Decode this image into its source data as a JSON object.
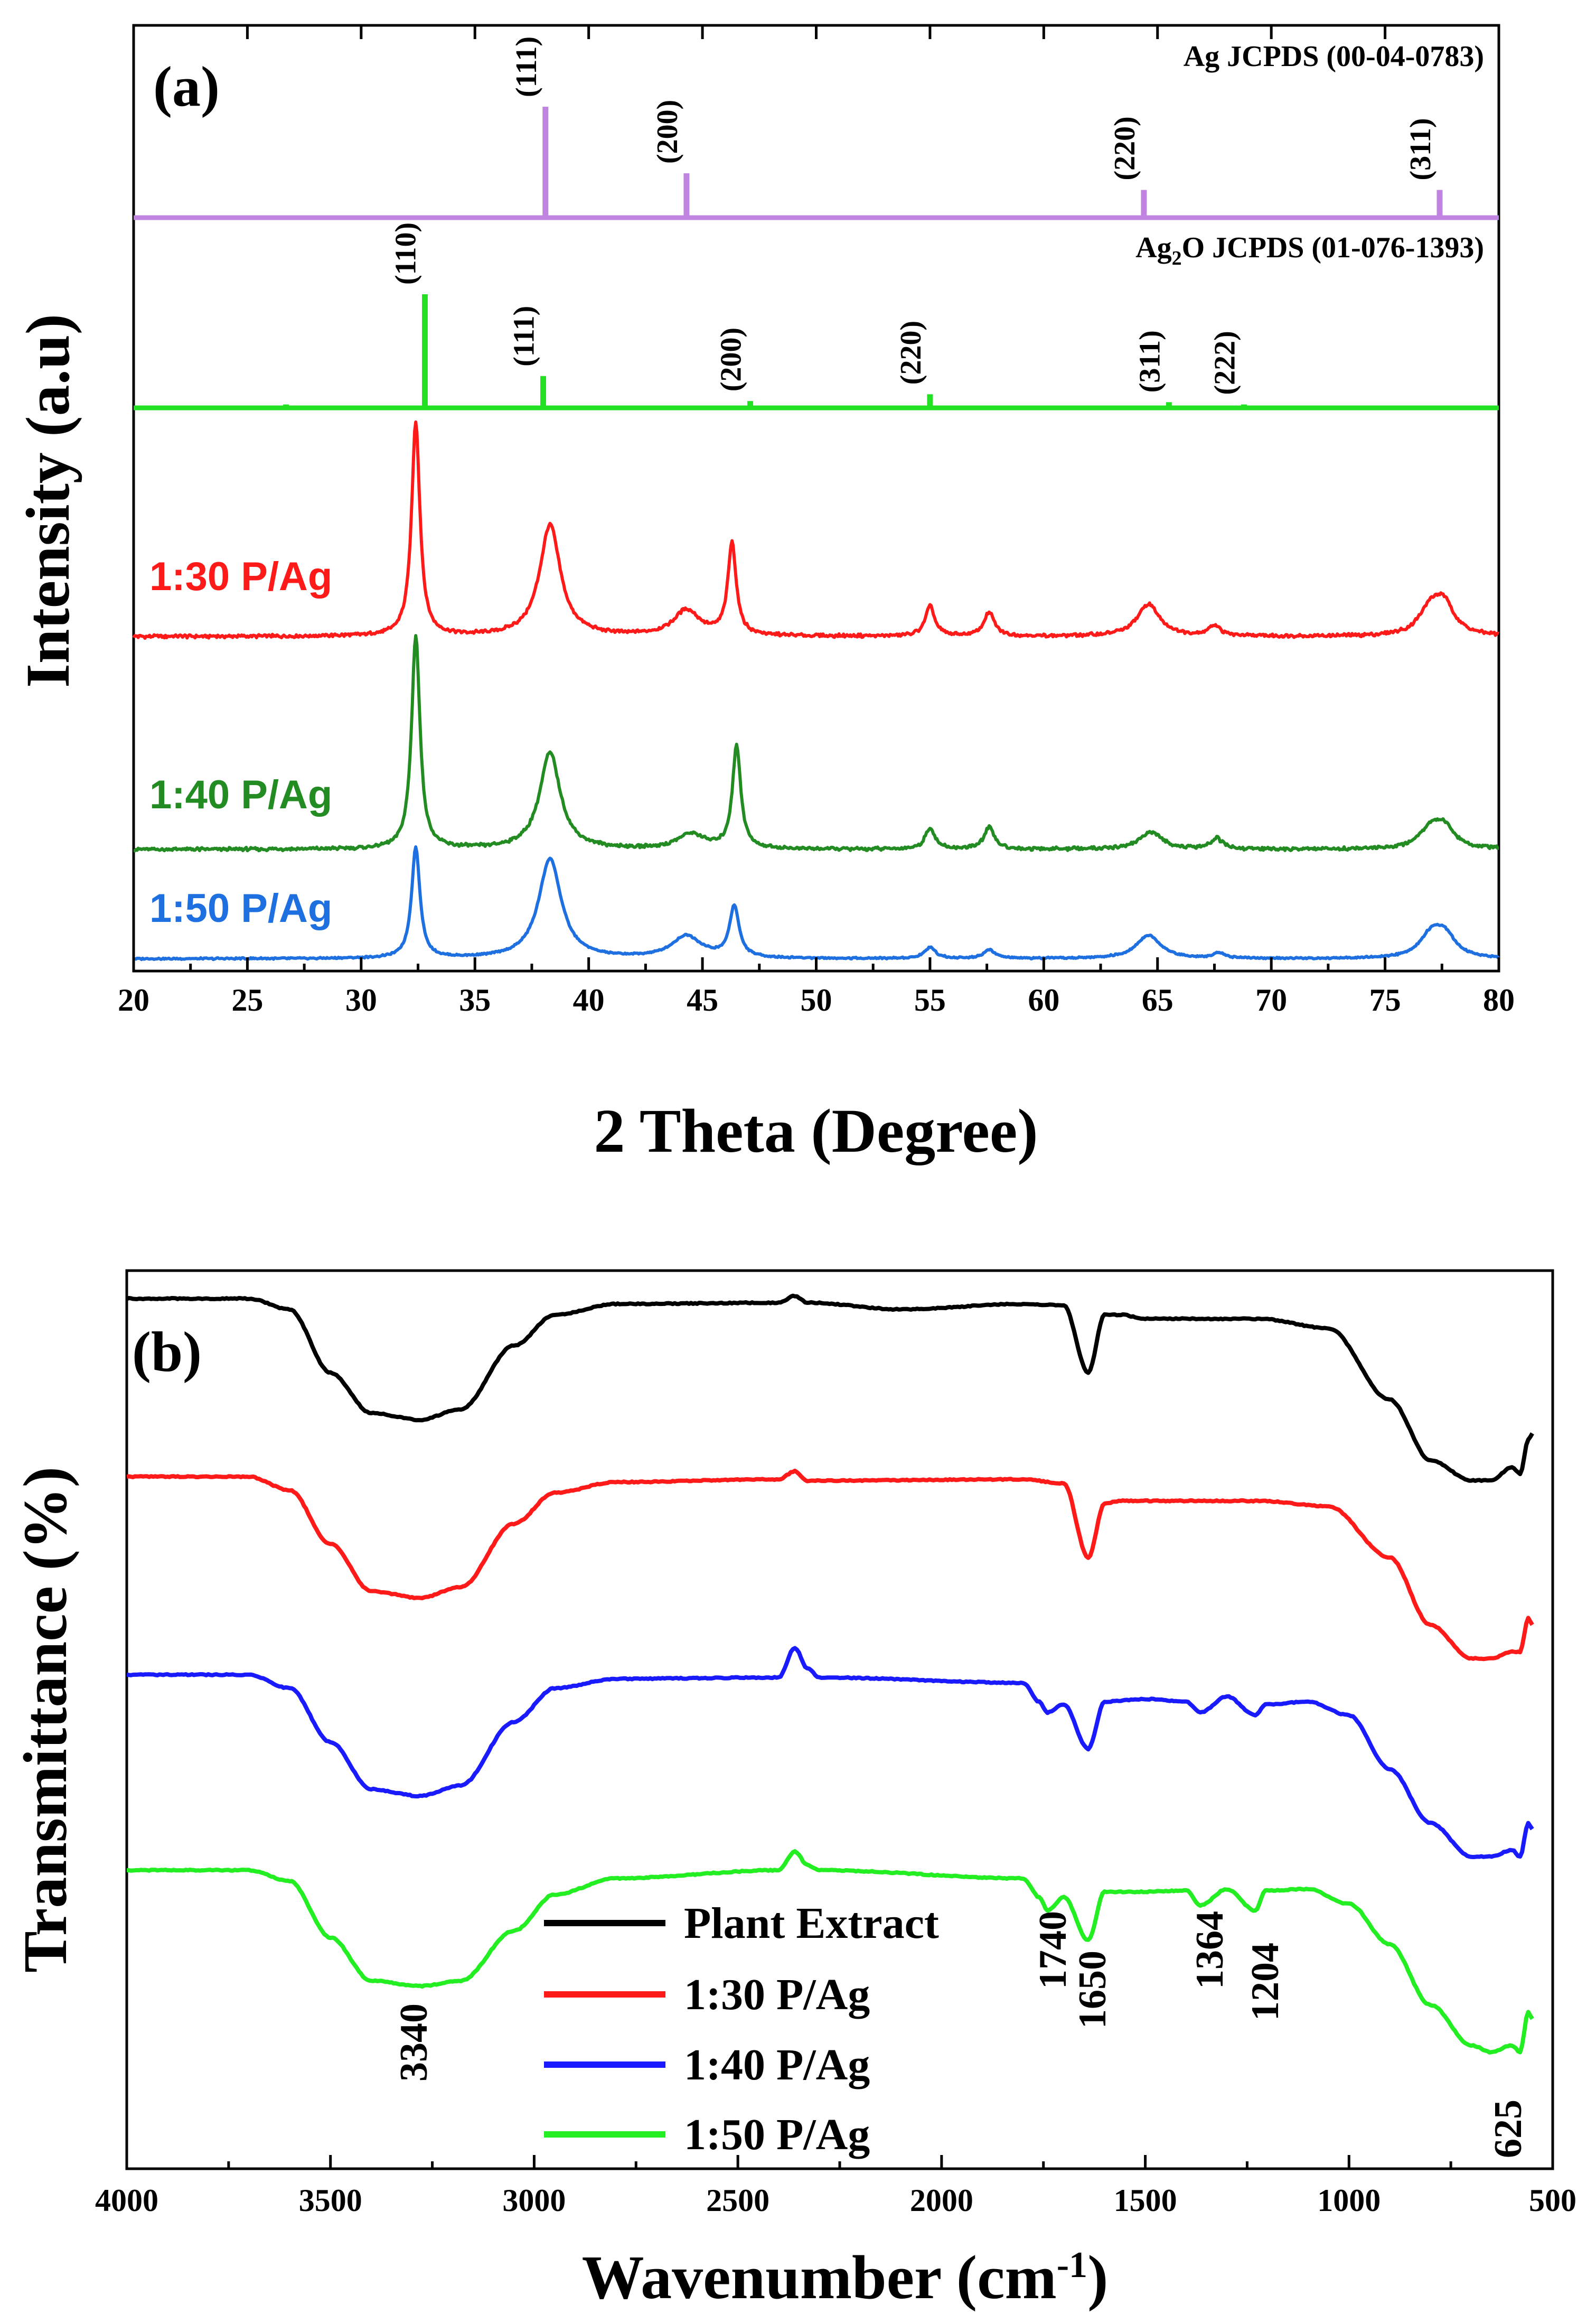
{
  "chart_data": [
    {
      "type": "line",
      "panel": "(a)",
      "title": "",
      "xlabel": "2 Theta (Degree)",
      "ylabel": "Intensity (a.u)",
      "xlim": [
        20,
        80
      ],
      "xticks": [
        "20",
        "25",
        "30",
        "35",
        "40",
        "45",
        "50",
        "55",
        "60",
        "65",
        "70",
        "75",
        "80"
      ],
      "reference_patterns": [
        {
          "name": "Ag JCPDS (00-04-0783)",
          "color": "#c084e0",
          "peaks": [
            {
              "x": 38.1,
              "h": 1.0,
              "label": "(111)"
            },
            {
              "x": 44.3,
              "h": 0.4,
              "label": "(200)"
            },
            {
              "x": 64.4,
              "h": 0.25,
              "label": "(220)"
            },
            {
              "x": 77.4,
              "h": 0.25,
              "label": "(311)"
            }
          ]
        },
        {
          "name": "Ag2O JCPDS (01-076-1393)",
          "name_main": "Ag",
          "name_sub": "2",
          "name_rest": "O JCPDS (01-076-1393)",
          "color": "#22e022",
          "peaks": [
            {
              "x": 26.7,
              "h": 0.03,
              "label": ""
            },
            {
              "x": 32.8,
              "h": 1.0,
              "label": "(110)"
            },
            {
              "x": 38.0,
              "h": 0.28,
              "label": "(111)"
            },
            {
              "x": 47.1,
              "h": 0.06,
              "label": "(200)"
            },
            {
              "x": 55.0,
              "h": 0.12,
              "label": "(220)"
            },
            {
              "x": 65.5,
              "h": 0.05,
              "label": "(311)"
            },
            {
              "x": 68.8,
              "h": 0.03,
              "label": "(222)"
            }
          ]
        }
      ],
      "series": [
        {
          "name": "1:30 P/Ag",
          "color": "#ff1a1a",
          "peaks": [
            [
              32.4,
              1.0,
              0.22
            ],
            [
              38.3,
              0.52,
              0.55
            ],
            [
              44.3,
              0.12,
              0.7
            ],
            [
              46.3,
              0.43,
              0.22
            ],
            [
              55.0,
              0.14,
              0.25
            ],
            [
              57.6,
              0.11,
              0.28
            ],
            [
              64.6,
              0.15,
              0.6
            ],
            [
              67.5,
              0.05,
              0.3
            ],
            [
              77.0,
              0.12,
              0.6
            ],
            [
              77.6,
              0.13,
              0.55
            ]
          ]
        },
        {
          "name": "1:40 P/Ag",
          "color": "#228b22",
          "peaks": [
            [
              32.4,
              1.0,
              0.22
            ],
            [
              38.3,
              0.45,
              0.55
            ],
            [
              44.5,
              0.07,
              0.7
            ],
            [
              46.5,
              0.48,
              0.22
            ],
            [
              55.0,
              0.1,
              0.25
            ],
            [
              57.6,
              0.1,
              0.28
            ],
            [
              64.7,
              0.08,
              0.6
            ],
            [
              67.6,
              0.05,
              0.3
            ],
            [
              77.0,
              0.09,
              0.6
            ],
            [
              77.6,
              0.09,
              0.55
            ]
          ]
        },
        {
          "name": "1:50 P/Ag",
          "color": "#1e6fe0",
          "peaks": [
            [
              32.4,
              1.0,
              0.22
            ],
            [
              38.3,
              0.9,
              0.6
            ],
            [
              44.3,
              0.2,
              0.8
            ],
            [
              46.4,
              0.46,
              0.25
            ],
            [
              55.0,
              0.1,
              0.3
            ],
            [
              57.6,
              0.08,
              0.3
            ],
            [
              64.6,
              0.21,
              0.65
            ],
            [
              67.7,
              0.05,
              0.3
            ],
            [
              77.0,
              0.18,
              0.6
            ],
            [
              77.6,
              0.2,
              0.6
            ]
          ]
        }
      ]
    },
    {
      "type": "line",
      "panel": "(b)",
      "title": "",
      "xlabel": "Wavenumber (cm-1)",
      "xlabel_main": "Wavenumber (cm",
      "xlabel_sup": "-1",
      "xlabel_end": ")",
      "ylabel": "Transmittance (%)",
      "xlim": [
        4000,
        500
      ],
      "xticks": [
        "4000",
        "3500",
        "3000",
        "2500",
        "2000",
        "1500",
        "1000",
        "500"
      ],
      "series": [
        {
          "name": "Plant Extract",
          "color": "#000000",
          "y": [
            [
              4000,
              0
            ],
            [
              3700,
              0
            ],
            [
              3600,
              0.08
            ],
            [
              3500,
              0.55
            ],
            [
              3400,
              0.85
            ],
            [
              3280,
              0.9
            ],
            [
              3180,
              0.82
            ],
            [
              3050,
              0.35
            ],
            [
              2950,
              0.12
            ],
            [
              2800,
              0.04
            ],
            [
              2400,
              0.03
            ],
            [
              2360,
              -0.02
            ],
            [
              2330,
              0.03
            ],
            [
              2100,
              0.08
            ],
            [
              1800,
              0.04
            ],
            [
              1700,
              0.05
            ],
            [
              1640,
              0.55
            ],
            [
              1600,
              0.12
            ],
            [
              1560,
              0.12
            ],
            [
              1500,
              0.15
            ],
            [
              1400,
              0.15
            ],
            [
              1220,
              0.15
            ],
            [
              1050,
              0.22
            ],
            [
              900,
              0.75
            ],
            [
              800,
              1.2
            ],
            [
              700,
              1.35
            ],
            [
              650,
              1.35
            ],
            [
              600,
              1.25
            ],
            [
              580,
              1.3
            ],
            [
              560,
              1.05
            ],
            [
              550,
              1.0
            ]
          ]
        },
        {
          "name": "1:30 P/Ag",
          "color": "#ff1a1a",
          "y": [
            [
              4000,
              0
            ],
            [
              3700,
              0
            ],
            [
              3600,
              0.1
            ],
            [
              3500,
              0.5
            ],
            [
              3400,
              0.85
            ],
            [
              3280,
              0.9
            ],
            [
              3180,
              0.82
            ],
            [
              3050,
              0.35
            ],
            [
              2950,
              0.12
            ],
            [
              2800,
              0.04
            ],
            [
              2400,
              0.02
            ],
            [
              2360,
              -0.04
            ],
            [
              2330,
              0.03
            ],
            [
              1800,
              0.02
            ],
            [
              1700,
              0.05
            ],
            [
              1640,
              0.6
            ],
            [
              1600,
              0.2
            ],
            [
              1560,
              0.18
            ],
            [
              1500,
              0.18
            ],
            [
              1370,
              0.18
            ],
            [
              1220,
              0.18
            ],
            [
              1050,
              0.22
            ],
            [
              900,
              0.6
            ],
            [
              800,
              1.1
            ],
            [
              700,
              1.35
            ],
            [
              650,
              1.35
            ],
            [
              600,
              1.3
            ],
            [
              580,
              1.3
            ],
            [
              560,
              1.05
            ],
            [
              550,
              1.1
            ]
          ]
        },
        {
          "name": "1:40 P/Ag",
          "color": "#1a1aff",
          "y": [
            [
              4000,
              0
            ],
            [
              3700,
              0
            ],
            [
              3600,
              0.1
            ],
            [
              3500,
              0.5
            ],
            [
              3400,
              0.85
            ],
            [
              3280,
              0.9
            ],
            [
              3180,
              0.82
            ],
            [
              3050,
              0.35
            ],
            [
              2950,
              0.1
            ],
            [
              2800,
              0.03
            ],
            [
              2400,
              0.02
            ],
            [
              2360,
              -0.2
            ],
            [
              2330,
              -0.05
            ],
            [
              2300,
              0.02
            ],
            [
              1800,
              0.06
            ],
            [
              1760,
              0.2
            ],
            [
              1740,
              0.28
            ],
            [
              1700,
              0.22
            ],
            [
              1640,
              0.55
            ],
            [
              1600,
              0.2
            ],
            [
              1500,
              0.18
            ],
            [
              1400,
              0.2
            ],
            [
              1364,
              0.28
            ],
            [
              1300,
              0.16
            ],
            [
              1230,
              0.3
            ],
            [
              1204,
              0.22
            ],
            [
              1100,
              0.2
            ],
            [
              1000,
              0.3
            ],
            [
              900,
              0.7
            ],
            [
              800,
              1.1
            ],
            [
              700,
              1.35
            ],
            [
              650,
              1.35
            ],
            [
              600,
              1.3
            ],
            [
              580,
              1.35
            ],
            [
              560,
              1.1
            ],
            [
              550,
              1.15
            ]
          ]
        },
        {
          "name": "1:50 P/Ag",
          "color": "#22ee22",
          "y": [
            [
              4000,
              0
            ],
            [
              3700,
              0
            ],
            [
              3600,
              0.08
            ],
            [
              3500,
              0.5
            ],
            [
              3400,
              0.82
            ],
            [
              3280,
              0.86
            ],
            [
              3180,
              0.82
            ],
            [
              3050,
              0.45
            ],
            [
              2950,
              0.18
            ],
            [
              2800,
              0.06
            ],
            [
              2400,
              0.0
            ],
            [
              2360,
              -0.14
            ],
            [
              2330,
              -0.04
            ],
            [
              2300,
              0.0
            ],
            [
              1800,
              0.06
            ],
            [
              1760,
              0.2
            ],
            [
              1740,
              0.3
            ],
            [
              1700,
              0.2
            ],
            [
              1640,
              0.52
            ],
            [
              1600,
              0.16
            ],
            [
              1500,
              0.16
            ],
            [
              1400,
              0.15
            ],
            [
              1364,
              0.26
            ],
            [
              1300,
              0.14
            ],
            [
              1230,
              0.3
            ],
            [
              1204,
              0.15
            ],
            [
              1100,
              0.14
            ],
            [
              1000,
              0.25
            ],
            [
              900,
              0.55
            ],
            [
              800,
              1.0
            ],
            [
              700,
              1.3
            ],
            [
              650,
              1.35
            ],
            [
              600,
              1.3
            ],
            [
              580,
              1.35
            ],
            [
              560,
              1.05
            ],
            [
              550,
              1.1
            ]
          ]
        }
      ],
      "annotations": [
        "3340",
        "1740",
        "1650",
        "1364",
        "1204",
        "625"
      ]
    }
  ]
}
